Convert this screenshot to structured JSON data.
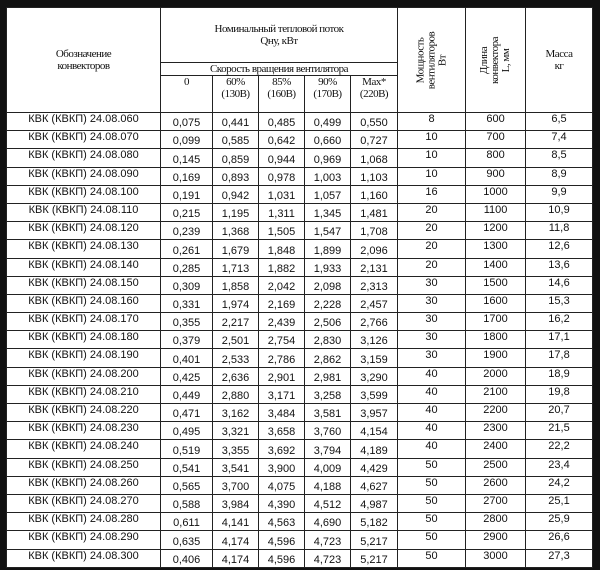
{
  "header": {
    "designation": "Обозначение конвекторов",
    "heat_flow": "Номинальный тепловой поток",
    "heat_flow_unit": "Qну, кВт",
    "fan_speed": "Скорость вращения вентилятора",
    "speeds": [
      {
        "line1": "0",
        "line2": ""
      },
      {
        "line1": "60%",
        "line2": "(130В)"
      },
      {
        "line1": "85%",
        "line2": "(160В)"
      },
      {
        "line1": "90%",
        "line2": "(170В)"
      },
      {
        "line1": "Max*",
        "line2": "(220В)"
      }
    ],
    "power_line1": "Мощность",
    "power_line2": "вентиляторов",
    "power_line3": "Вт",
    "length_line1": "Длина",
    "length_line2": "конвектора",
    "length_line3": "L, мм",
    "mass_line1": "Масса",
    "mass_line2": "кг"
  },
  "rows": [
    [
      "КВК (КВКП) 24.08.060",
      "0,075",
      "0,441",
      "0,485",
      "0,499",
      "0,550",
      "8",
      "600",
      "6,5"
    ],
    [
      "КВК (КВКП) 24.08.070",
      "0,099",
      "0,585",
      "0,642",
      "0,660",
      "0,727",
      "10",
      "700",
      "7,4"
    ],
    [
      "КВК (КВКП) 24.08.080",
      "0,145",
      "0,859",
      "0,944",
      "0,969",
      "1,068",
      "10",
      "800",
      "8,5"
    ],
    [
      "КВК (КВКП) 24.08.090",
      "0,169",
      "0,893",
      "0,978",
      "1,003",
      "1,103",
      "10",
      "900",
      "8,9"
    ],
    [
      "КВК (КВКП) 24.08.100",
      "0,191",
      "0,942",
      "1,031",
      "1,057",
      "1,160",
      "16",
      "1000",
      "9,9"
    ],
    [
      "КВК (КВКП) 24.08.110",
      "0,215",
      "1,195",
      "1,311",
      "1,345",
      "1,481",
      "20",
      "1100",
      "10,9"
    ],
    [
      "КВК (КВКП) 24.08.120",
      "0,239",
      "1,368",
      "1,505",
      "1,547",
      "1,708",
      "20",
      "1200",
      "11,8"
    ],
    [
      "КВК (КВКП) 24.08.130",
      "0,261",
      "1,679",
      "1,848",
      "1,899",
      "2,096",
      "20",
      "1300",
      "12,6"
    ],
    [
      "КВК (КВКП) 24.08.140",
      "0,285",
      "1,713",
      "1,882",
      "1,933",
      "2,131",
      "20",
      "1400",
      "13,6"
    ],
    [
      "КВК (КВКП) 24.08.150",
      "0,309",
      "1,858",
      "2,042",
      "2,098",
      "2,313",
      "30",
      "1500",
      "14,6"
    ],
    [
      "КВК (КВКП) 24.08.160",
      "0,331",
      "1,974",
      "2,169",
      "2,228",
      "2,457",
      "30",
      "1600",
      "15,3"
    ],
    [
      "КВК (КВКП) 24.08.170",
      "0,355",
      "2,217",
      "2,439",
      "2,506",
      "2,766",
      "30",
      "1700",
      "16,2"
    ],
    [
      "КВК (КВКП) 24.08.180",
      "0,379",
      "2,501",
      "2,754",
      "2,830",
      "3,126",
      "30",
      "1800",
      "17,1"
    ],
    [
      "КВК (КВКП) 24.08.190",
      "0,401",
      "2,533",
      "2,786",
      "2,862",
      "3,159",
      "30",
      "1900",
      "17,8"
    ],
    [
      "КВК (КВКП) 24.08.200",
      "0,425",
      "2,636",
      "2,901",
      "2,981",
      "3,290",
      "40",
      "2000",
      "18,9"
    ],
    [
      "КВК (КВКП) 24.08.210",
      "0,449",
      "2,880",
      "3,171",
      "3,258",
      "3,599",
      "40",
      "2100",
      "19,8"
    ],
    [
      "КВК (КВКП) 24.08.220",
      "0,471",
      "3,162",
      "3,484",
      "3,581",
      "3,957",
      "40",
      "2200",
      "20,7"
    ],
    [
      "КВК (КВКП) 24.08.230",
      "0,495",
      "3,321",
      "3,658",
      "3,760",
      "4,154",
      "40",
      "2300",
      "21,5"
    ],
    [
      "КВК (КВКП) 24.08.240",
      "0,519",
      "3,355",
      "3,692",
      "3,794",
      "4,189",
      "40",
      "2400",
      "22,2"
    ],
    [
      "КВК (КВКП) 24.08.250",
      "0,541",
      "3,541",
      "3,900",
      "4,009",
      "4,429",
      "50",
      "2500",
      "23,4"
    ],
    [
      "КВК (КВКП) 24.08.260",
      "0,565",
      "3,700",
      "4,075",
      "4,188",
      "4,627",
      "50",
      "2600",
      "24,2"
    ],
    [
      "КВК (КВКП) 24.08.270",
      "0,588",
      "3,984",
      "4,390",
      "4,512",
      "4,987",
      "50",
      "2700",
      "25,1"
    ],
    [
      "КВК (КВКП) 24.08.280",
      "0,611",
      "4,141",
      "4,563",
      "4,690",
      "5,182",
      "50",
      "2800",
      "25,9"
    ],
    [
      "КВК (КВКП) 24.08.290",
      "0,635",
      "4,174",
      "4,596",
      "4,723",
      "5,217",
      "50",
      "2900",
      "26,6"
    ],
    [
      "КВК (КВКП) 24.08.300",
      "0,406",
      "4,174",
      "4,596",
      "4,723",
      "5,217",
      "50",
      "3000",
      "27,3"
    ]
  ]
}
